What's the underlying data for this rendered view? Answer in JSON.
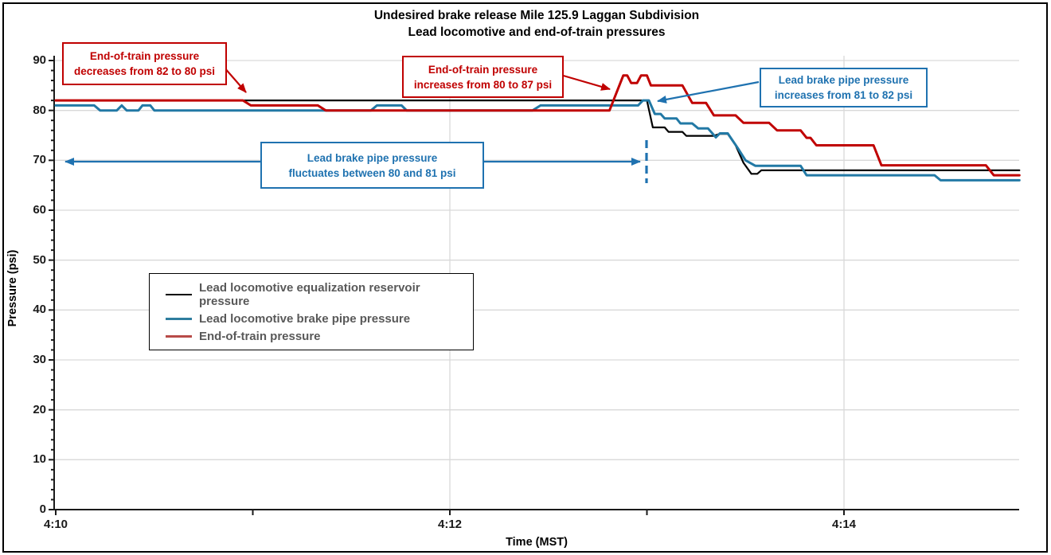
{
  "title": {
    "line1": "Undesired brake release Mile 125.9 Laggan Subdivision",
    "line2": "Lead locomotive and end-of-train pressures"
  },
  "axes": {
    "x": {
      "label": "Time (MST)",
      "ticks": [
        {
          "t": 0,
          "label": "4:10"
        },
        {
          "t": 1,
          "label": ""
        },
        {
          "t": 2,
          "label": "4:12"
        },
        {
          "t": 3,
          "label": ""
        },
        {
          "t": 4,
          "label": "4:14"
        }
      ]
    },
    "y": {
      "label": "Pressure (psi)",
      "min": 0,
      "max": 90,
      "major_step": 10,
      "minor_step": 2
    }
  },
  "legend": {
    "items": [
      {
        "label": "Lead locomotive equalization reservoir pressure",
        "color": "#000000"
      },
      {
        "label": "Lead locomotive brake pipe pressure",
        "color": "#2E7D9E"
      },
      {
        "label": "End-of-train pressure",
        "color": "#B84B48"
      }
    ]
  },
  "annotations": [
    {
      "line1": "End-of-train pressure",
      "line2": "decreases from 82 to 80 psi",
      "color": "#C00000"
    },
    {
      "line1": "End-of-train pressure",
      "line2": "increases from 80 to 87 psi",
      "color": "#C00000"
    },
    {
      "line1": "Lead brake pipe pressure",
      "line2": "increases from 81 to 82 psi",
      "color": "#1F72B0"
    },
    {
      "line1": "Lead brake pipe pressure",
      "line2": "fluctuates between 80 and 81 psi",
      "color": "#1F72B0"
    }
  ],
  "colors": {
    "grid": "#D9D9D9",
    "axis": "#1a1a1a",
    "red": "#C00000",
    "blue": "#1F72B0"
  },
  "chart_data": {
    "type": "line",
    "title": "Undesired brake release Mile 125.9 Laggan Subdivision — Lead locomotive and end-of-train pressures",
    "xlabel": "Time (MST)",
    "ylabel": "Pressure (psi)",
    "x_unit": "minutes after 4:10 MST",
    "x_range": [
      0,
      4.89
    ],
    "ylim": [
      0,
      90
    ],
    "grid": "horizontal every 10 psi; vertical gridlines at 4:12 and 4:14",
    "legend_position": "boxed, middle-left",
    "series": [
      {
        "name": "Lead locomotive equalization reservoir pressure",
        "color": "#000000",
        "width": 2.2,
        "points": [
          [
            0,
            82
          ],
          [
            3.0,
            82
          ],
          [
            3.03,
            76.6
          ],
          [
            3.09,
            76.6
          ],
          [
            3.11,
            75.7
          ],
          [
            3.18,
            75.7
          ],
          [
            3.2,
            74.9
          ],
          [
            3.34,
            74.9
          ],
          [
            3.37,
            75.3
          ],
          [
            3.41,
            75.3
          ],
          [
            3.45,
            73
          ],
          [
            3.49,
            69.5
          ],
          [
            3.53,
            67.3
          ],
          [
            3.56,
            67.3
          ],
          [
            3.58,
            68
          ],
          [
            4.89,
            68
          ]
        ]
      },
      {
        "name": "Lead locomotive brake pipe pressure",
        "color": "#2279A5",
        "width": 3,
        "points": [
          [
            0,
            81
          ],
          [
            0.195,
            81
          ],
          [
            0.225,
            80
          ],
          [
            0.31,
            80
          ],
          [
            0.335,
            81
          ],
          [
            0.36,
            80
          ],
          [
            0.42,
            80
          ],
          [
            0.44,
            81
          ],
          [
            0.48,
            81
          ],
          [
            0.5,
            80
          ],
          [
            1.6,
            80
          ],
          [
            1.63,
            81
          ],
          [
            1.755,
            81
          ],
          [
            1.78,
            80
          ],
          [
            2.42,
            80
          ],
          [
            2.46,
            81
          ],
          [
            2.955,
            81
          ],
          [
            2.98,
            82
          ],
          [
            3.01,
            82
          ],
          [
            3.04,
            79.3
          ],
          [
            3.07,
            79.3
          ],
          [
            3.09,
            78.4
          ],
          [
            3.15,
            78.4
          ],
          [
            3.17,
            77.4
          ],
          [
            3.23,
            77.4
          ],
          [
            3.26,
            76.4
          ],
          [
            3.31,
            76.4
          ],
          [
            3.35,
            74.6
          ],
          [
            3.37,
            75.4
          ],
          [
            3.41,
            75.4
          ],
          [
            3.46,
            72.5
          ],
          [
            3.5,
            70
          ],
          [
            3.55,
            68.9
          ],
          [
            3.78,
            68.9
          ],
          [
            3.81,
            67
          ],
          [
            4.46,
            67
          ],
          [
            4.49,
            66
          ],
          [
            4.89,
            66
          ]
        ]
      },
      {
        "name": "End-of-train pressure",
        "color": "#C00000",
        "width": 3,
        "points": [
          [
            0,
            82
          ],
          [
            0.95,
            82
          ],
          [
            0.99,
            81
          ],
          [
            1.33,
            81
          ],
          [
            1.37,
            80
          ],
          [
            2.81,
            80
          ],
          [
            2.88,
            87
          ],
          [
            2.9,
            87
          ],
          [
            2.92,
            85.5
          ],
          [
            2.95,
            85.5
          ],
          [
            2.97,
            87
          ],
          [
            3.0,
            87
          ],
          [
            3.02,
            85
          ],
          [
            3.18,
            85
          ],
          [
            3.23,
            81.5
          ],
          [
            3.3,
            81.5
          ],
          [
            3.34,
            79
          ],
          [
            3.45,
            79
          ],
          [
            3.49,
            77.5
          ],
          [
            3.62,
            77.5
          ],
          [
            3.66,
            76
          ],
          [
            3.78,
            76
          ],
          [
            3.81,
            74.5
          ],
          [
            3.83,
            74.5
          ],
          [
            3.86,
            73
          ],
          [
            4.15,
            73
          ],
          [
            4.19,
            69
          ],
          [
            4.72,
            69
          ],
          [
            4.76,
            67
          ],
          [
            4.89,
            67
          ]
        ]
      }
    ]
  }
}
